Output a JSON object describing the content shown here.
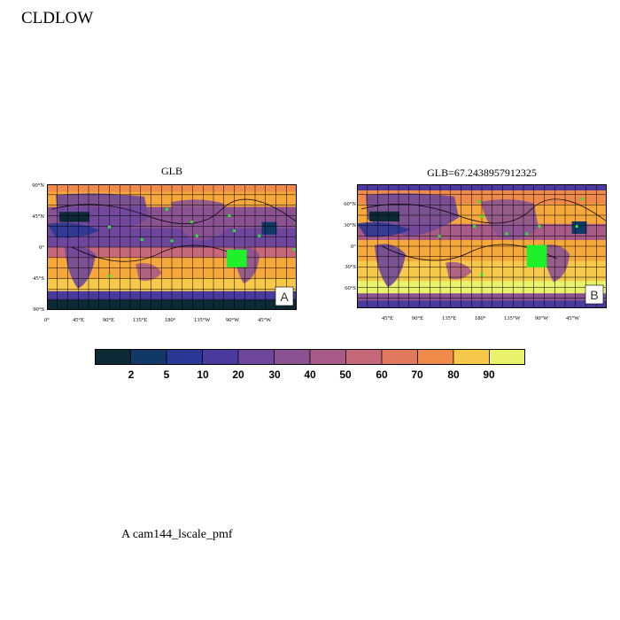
{
  "page": {
    "title": "CLDLOW",
    "footnote": "A  cam144_lscale_pmf"
  },
  "panels": [
    {
      "id": "A",
      "title": "GLB",
      "label": "A",
      "lat_ticks": [
        "90°N",
        "45°N",
        "0°",
        "45°S",
        "90°S"
      ],
      "lon_ticks": [
        "0°",
        "45°E",
        "90°E",
        "135°E",
        "180°",
        "135°W",
        "90°W",
        "45°W"
      ]
    },
    {
      "id": "B",
      "title": "GLB=67.2438957912325",
      "label": "B",
      "lat_ticks": [
        "60°N",
        "30°N",
        "0°",
        "30°S",
        "60°S"
      ],
      "lon_ticks": [
        "45°E",
        "90°E",
        "135°E",
        "180°",
        "135°W",
        "90°W",
        "45°W"
      ]
    }
  ],
  "colorbar": {
    "levels": [
      "2",
      "5",
      "10",
      "20",
      "30",
      "40",
      "50",
      "60",
      "70",
      "80",
      "90"
    ],
    "colors": [
      "#0c2a35",
      "#123868",
      "#2b3794",
      "#4a3a9d",
      "#6e479c",
      "#8b5292",
      "#a85a86",
      "#c7677a",
      "#e1795e",
      "#f08a4a",
      "#f6a83b",
      "#f6c94a",
      "#e9f26a"
    ]
  },
  "markers_color": "#1ef02a"
}
